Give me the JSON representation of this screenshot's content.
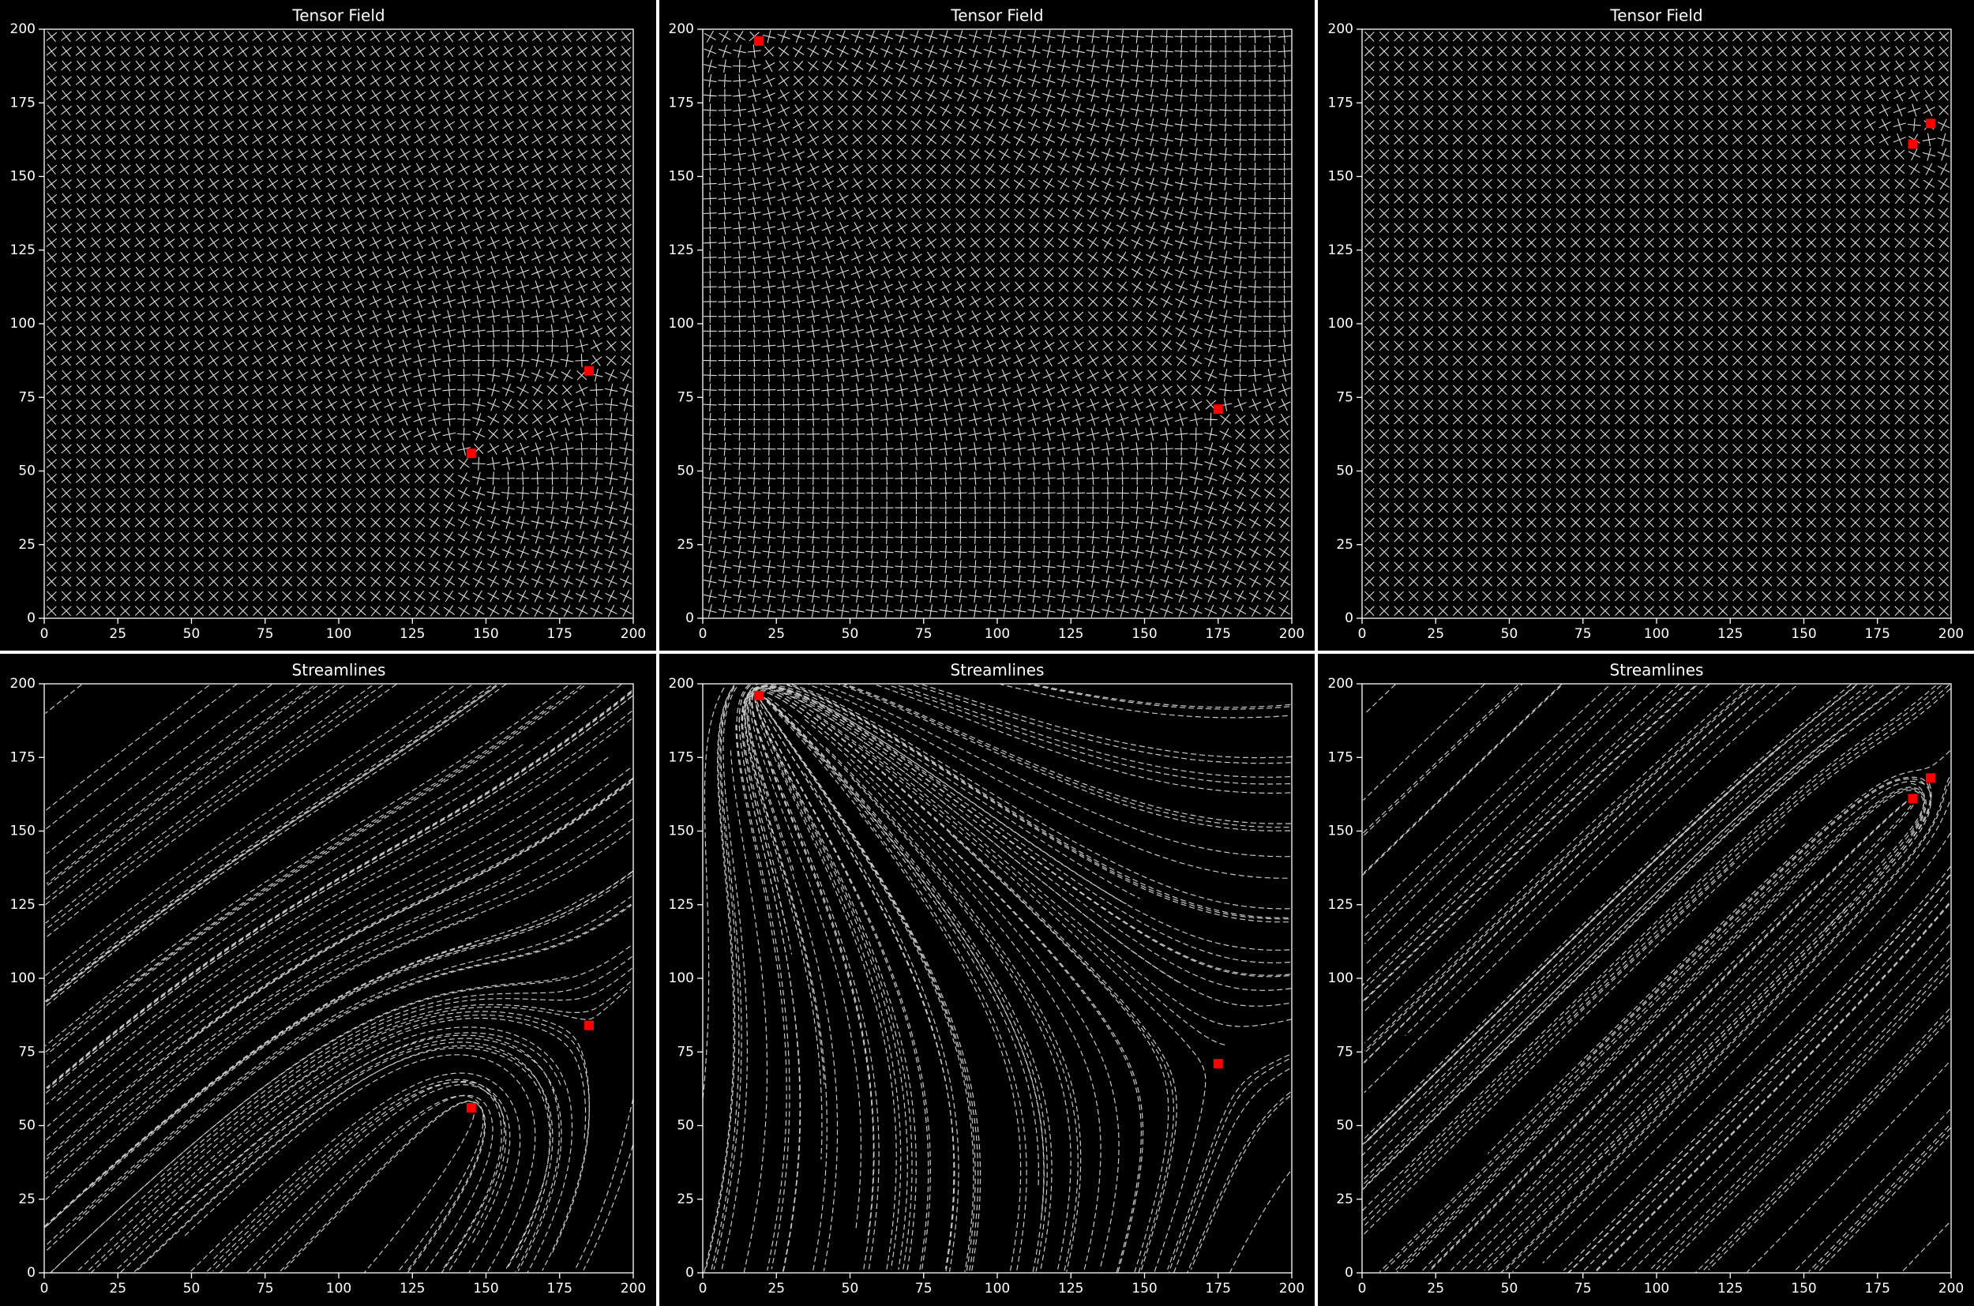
{
  "chart_data": [
    {
      "type": "tensor",
      "title": "Tensor Field",
      "xlim": [
        0,
        200
      ],
      "ylim": [
        0,
        200
      ],
      "xticks": [
        0,
        25,
        50,
        75,
        100,
        125,
        150,
        175,
        200
      ],
      "yticks": [
        0,
        25,
        50,
        75,
        100,
        125,
        150,
        175,
        200
      ],
      "singularities": {
        "x": [
          145,
          185
        ],
        "y": [
          56,
          84
        ],
        "color": "#ff0000"
      }
    },
    {
      "type": "tensor",
      "title": "Tensor Field",
      "xlim": [
        0,
        200
      ],
      "ylim": [
        0,
        200
      ],
      "xticks": [
        0,
        25,
        50,
        75,
        100,
        125,
        150,
        175,
        200
      ],
      "yticks": [
        0,
        25,
        50,
        75,
        100,
        125,
        150,
        175,
        200
      ],
      "singularities": {
        "x": [
          19,
          175
        ],
        "y": [
          196,
          71
        ],
        "color": "#ff0000"
      }
    },
    {
      "type": "tensor",
      "title": "Tensor Field",
      "xlim": [
        0,
        200
      ],
      "ylim": [
        0,
        200
      ],
      "xticks": [
        0,
        25,
        50,
        75,
        100,
        125,
        150,
        175,
        200
      ],
      "yticks": [
        0,
        25,
        50,
        75,
        100,
        125,
        150,
        175,
        200
      ],
      "singularities": {
        "x": [
          187,
          193
        ],
        "y": [
          161,
          168
        ],
        "color": "#ff0000"
      }
    },
    {
      "type": "streamlines",
      "title": "Streamlines",
      "xlim": [
        0,
        200
      ],
      "ylim": [
        0,
        200
      ],
      "xticks": [
        0,
        25,
        50,
        75,
        100,
        125,
        150,
        175,
        200
      ],
      "yticks": [
        0,
        25,
        50,
        75,
        100,
        125,
        150,
        175,
        200
      ],
      "singularities": {
        "x": [
          145,
          185
        ],
        "y": [
          56,
          84
        ],
        "color": "#ff0000"
      }
    },
    {
      "type": "streamlines",
      "title": "Streamlines",
      "xlim": [
        0,
        200
      ],
      "ylim": [
        0,
        200
      ],
      "xticks": [
        0,
        25,
        50,
        75,
        100,
        125,
        150,
        175,
        200
      ],
      "yticks": [
        0,
        25,
        50,
        75,
        100,
        125,
        150,
        175,
        200
      ],
      "singularities": {
        "x": [
          19,
          175
        ],
        "y": [
          196,
          71
        ],
        "color": "#ff0000"
      }
    },
    {
      "type": "streamlines",
      "title": "Streamlines",
      "xlim": [
        0,
        200
      ],
      "ylim": [
        0,
        200
      ],
      "xticks": [
        0,
        25,
        50,
        75,
        100,
        125,
        150,
        175,
        200
      ],
      "yticks": [
        0,
        25,
        50,
        75,
        100,
        125,
        150,
        175,
        200
      ],
      "singularities": {
        "x": [
          187,
          193
        ],
        "y": [
          161,
          168
        ],
        "color": "#ff0000"
      }
    }
  ]
}
